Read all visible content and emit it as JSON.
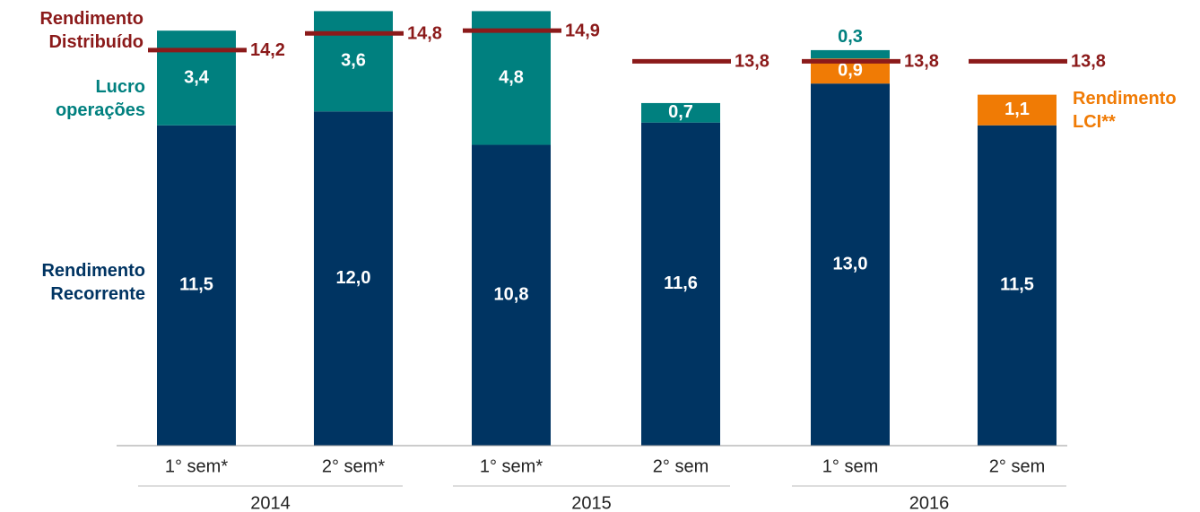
{
  "chart_data": {
    "type": "bar",
    "stacked": true,
    "categories": [
      "1° sem*",
      "2° sem*",
      "1° sem*",
      "2° sem",
      "1° sem",
      "2° sem"
    ],
    "groups": [
      "2014",
      "2015",
      "2016"
    ],
    "ylim": [
      0,
      16
    ],
    "series": [
      {
        "name": "Rendimento Recorrente",
        "color": "#003462",
        "values": [
          11.5,
          12.0,
          10.8,
          11.6,
          13.0,
          11.5
        ],
        "value_labels": [
          "11,5",
          "12,0",
          "10,8",
          "11,6",
          "13,0",
          "11,5"
        ]
      },
      {
        "name": "Rendimento LCI**",
        "color": "#f07b05",
        "values": [
          null,
          null,
          null,
          null,
          0.9,
          1.1
        ],
        "value_labels": [
          null,
          null,
          null,
          null,
          "0,9",
          "1,1"
        ]
      },
      {
        "name": "Lucro operações",
        "color": "#00807f",
        "values": [
          3.4,
          3.6,
          4.8,
          0.7,
          0.3,
          null
        ],
        "value_labels": [
          "3,4",
          "3,6",
          "4,8",
          "0,7",
          "0,3",
          null
        ]
      }
    ],
    "line": {
      "name": "Rendimento Distribuído",
      "color": "#8b1a1a",
      "values": [
        14.2,
        14.8,
        14.9,
        13.8,
        13.8,
        13.8
      ],
      "value_labels": [
        "14,2",
        "14,8",
        "14,9",
        "13,8",
        "13,8",
        "13,8"
      ]
    }
  }
}
